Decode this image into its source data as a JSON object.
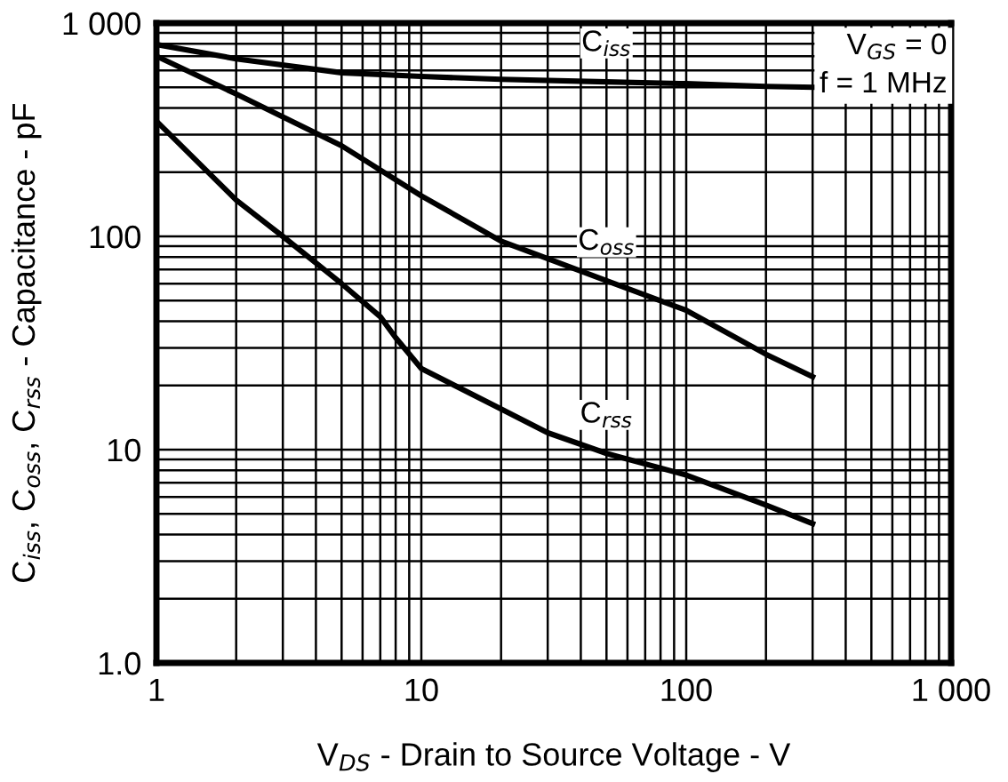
{
  "chart_data": {
    "type": "line",
    "xlabel": "V$_{DS}$ - Drain to Source Voltage - V",
    "ylabel": "C$_{iss}$, C$_{oss}$, C$_{rss}$ - Capacitance - pF",
    "log": "xy",
    "grid": true,
    "marker": "none",
    "line_style": "solid",
    "xlim": [
      1,
      1000
    ],
    "xticks": [
      1,
      10,
      100,
      {
        "value": 1000,
        "label": "1 000"
      }
    ],
    "ylim": [
      1,
      1000
    ],
    "yticks": [
      {
        "value": 1,
        "label": "1.0"
      },
      10,
      100,
      {
        "value": 1000,
        "label": "1 000"
      }
    ],
    "annotations": [
      "V$_{GS}$ = 0\nf = 1 MHz"
    ],
    "series": [
      {
        "name": "C$_{iss}$",
        "color": "#000000",
        "x": [
          1,
          2,
          5,
          10,
          20,
          50,
          100,
          200,
          300
        ],
        "values": [
          794,
          680,
          585,
          562,
          545,
          530,
          520,
          505,
          500
        ]
      },
      {
        "name": "C$_{oss}$",
        "color": "#000000",
        "x": [
          1,
          2,
          5,
          10,
          20,
          50,
          100,
          200,
          300
        ],
        "values": [
          700,
          465,
          266,
          155,
          95,
          62,
          45,
          28,
          22
        ]
      },
      {
        "name": "C$_{rss}$",
        "color": "#000000",
        "x": [
          1,
          2,
          3,
          5,
          7,
          8,
          10,
          20,
          30,
          50,
          100,
          200,
          300
        ],
        "values": [
          347,
          148,
          100,
          60,
          42,
          33.5,
          24,
          15.5,
          12,
          9.6,
          7.6,
          5.5,
          4.5
        ]
      }
    ]
  }
}
